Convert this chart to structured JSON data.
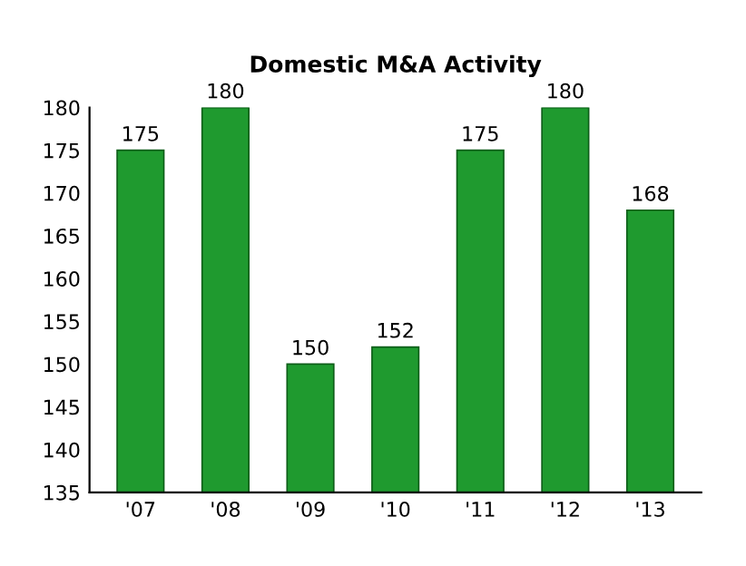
{
  "chart_data": {
    "type": "bar",
    "title": "Domestic M&A Activity",
    "categories": [
      "'07",
      "'08",
      "'09",
      "'10",
      "'11",
      "'12",
      "'13"
    ],
    "values": [
      175,
      180,
      150,
      152,
      175,
      180,
      168
    ],
    "color": "#1f9a2f",
    "ylim": [
      135,
      180
    ],
    "yticks": [
      135,
      140,
      145,
      150,
      155,
      160,
      165,
      170,
      175,
      180
    ],
    "data_labels": true,
    "grid": false
  }
}
